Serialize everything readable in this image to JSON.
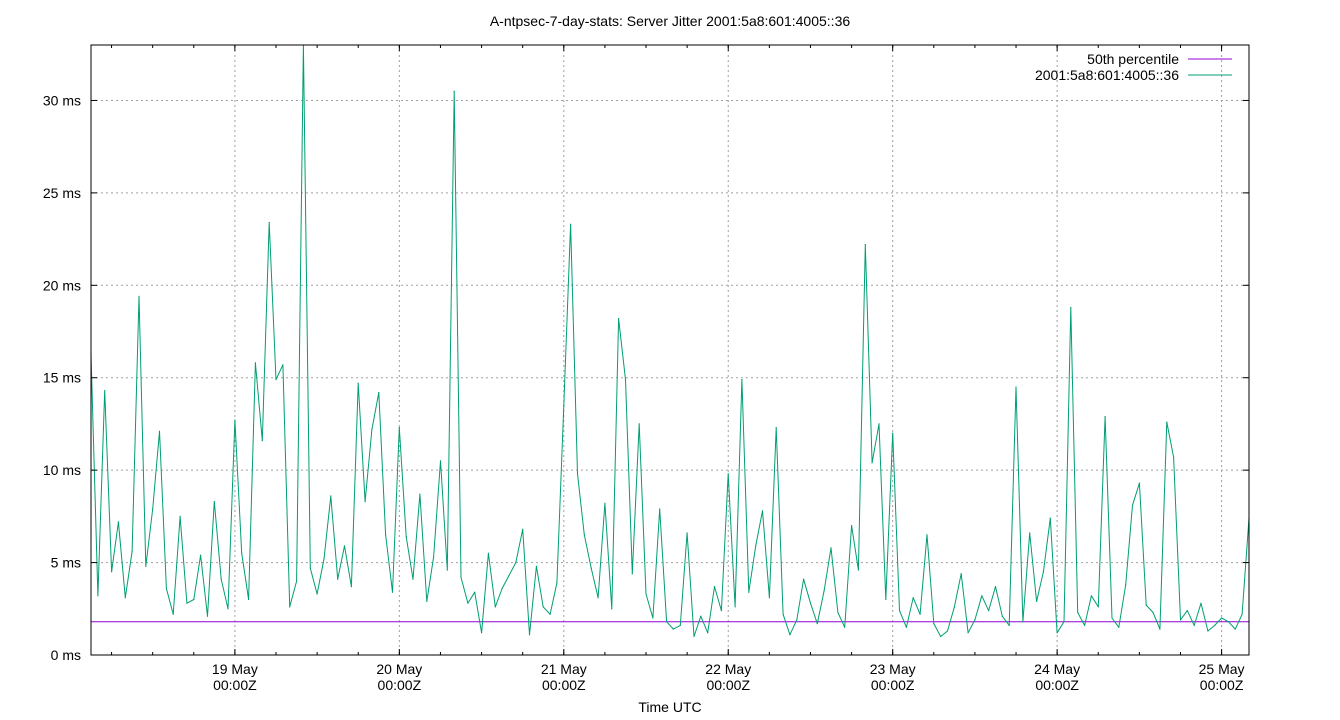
{
  "chart_data": {
    "type": "line",
    "title": "A-ntpsec-7-day-stats: Server Jitter 2001:5a8:601:4005::36",
    "xlabel": "Time UTC",
    "ylabel": "",
    "y_unit": "ms",
    "ylim": [
      0,
      33
    ],
    "xlim": [
      "2023-05-18T03:00:00Z",
      "2023-05-25T04:00:00Z"
    ],
    "y_ticks": [
      {
        "value": 0,
        "label": "0 ms"
      },
      {
        "value": 5,
        "label": "5 ms"
      },
      {
        "value": 10,
        "label": "10 ms"
      },
      {
        "value": 15,
        "label": "15 ms"
      },
      {
        "value": 20,
        "label": "20 ms"
      },
      {
        "value": 25,
        "label": "25 ms"
      },
      {
        "value": 30,
        "label": "30 ms"
      }
    ],
    "x_ticks": [
      {
        "value": "2023-05-19T00:00:00Z",
        "line1": "19 May",
        "line2": "00:00Z"
      },
      {
        "value": "2023-05-20T00:00:00Z",
        "line1": "20 May",
        "line2": "00:00Z"
      },
      {
        "value": "2023-05-21T00:00:00Z",
        "line1": "21 May",
        "line2": "00:00Z"
      },
      {
        "value": "2023-05-22T00:00:00Z",
        "line1": "22 May",
        "line2": "00:00Z"
      },
      {
        "value": "2023-05-23T00:00:00Z",
        "line1": "23 May",
        "line2": "00:00Z"
      },
      {
        "value": "2023-05-24T00:00:00Z",
        "line1": "24 May",
        "line2": "00:00Z"
      },
      {
        "value": "2023-05-25T00:00:00Z",
        "line1": "25 May",
        "line2": "00:00Z"
      }
    ],
    "grid": true,
    "legend_position": "top-right",
    "series": [
      {
        "name": "50th percentile",
        "color": "#9400d3",
        "x": [
          "2023-05-18T03:00:00Z",
          "2023-05-25T04:00:00Z"
        ],
        "values": [
          1.8,
          1.8
        ]
      },
      {
        "name": "2001:5a8:601:4005::36",
        "color": "#009e73",
        "x": [
          "2023-05-18T03:00:00Z",
          "2023-05-18T04:00:00Z",
          "2023-05-18T05:00:00Z",
          "2023-05-18T06:00:00Z",
          "2023-05-18T07:00:00Z",
          "2023-05-18T08:00:00Z",
          "2023-05-18T09:00:00Z",
          "2023-05-18T10:00:00Z",
          "2023-05-18T11:00:00Z",
          "2023-05-18T12:00:00Z",
          "2023-05-18T13:00:00Z",
          "2023-05-18T14:00:00Z",
          "2023-05-18T15:00:00Z",
          "2023-05-18T16:00:00Z",
          "2023-05-18T17:00:00Z",
          "2023-05-18T18:00:00Z",
          "2023-05-18T19:00:00Z",
          "2023-05-18T20:00:00Z",
          "2023-05-18T21:00:00Z",
          "2023-05-18T22:00:00Z",
          "2023-05-18T23:00:00Z",
          "2023-05-19T00:00:00Z",
          "2023-05-19T01:00:00Z",
          "2023-05-19T02:00:00Z",
          "2023-05-19T03:00:00Z",
          "2023-05-19T04:00:00Z",
          "2023-05-19T05:00:00Z",
          "2023-05-19T06:00:00Z",
          "2023-05-19T07:00:00Z",
          "2023-05-19T08:00:00Z",
          "2023-05-19T09:00:00Z",
          "2023-05-19T10:00:00Z",
          "2023-05-19T11:00:00Z",
          "2023-05-19T12:00:00Z",
          "2023-05-19T13:00:00Z",
          "2023-05-19T14:00:00Z",
          "2023-05-19T15:00:00Z",
          "2023-05-19T16:00:00Z",
          "2023-05-19T17:00:00Z",
          "2023-05-19T18:00:00Z",
          "2023-05-19T19:00:00Z",
          "2023-05-19T20:00:00Z",
          "2023-05-19T21:00:00Z",
          "2023-05-19T22:00:00Z",
          "2023-05-19T23:00:00Z",
          "2023-05-20T00:00:00Z",
          "2023-05-20T01:00:00Z",
          "2023-05-20T02:00:00Z",
          "2023-05-20T03:00:00Z",
          "2023-05-20T04:00:00Z",
          "2023-05-20T05:00:00Z",
          "2023-05-20T06:00:00Z",
          "2023-05-20T07:00:00Z",
          "2023-05-20T08:00:00Z",
          "2023-05-20T09:00:00Z",
          "2023-05-20T10:00:00Z",
          "2023-05-20T11:00:00Z",
          "2023-05-20T12:00:00Z",
          "2023-05-20T13:00:00Z",
          "2023-05-20T14:00:00Z",
          "2023-05-20T15:00:00Z",
          "2023-05-20T16:00:00Z",
          "2023-05-20T17:00:00Z",
          "2023-05-20T18:00:00Z",
          "2023-05-20T19:00:00Z",
          "2023-05-20T20:00:00Z",
          "2023-05-20T21:00:00Z",
          "2023-05-20T22:00:00Z",
          "2023-05-20T23:00:00Z",
          "2023-05-21T00:00:00Z",
          "2023-05-21T01:00:00Z",
          "2023-05-21T02:00:00Z",
          "2023-05-21T03:00:00Z",
          "2023-05-21T04:00:00Z",
          "2023-05-21T05:00:00Z",
          "2023-05-21T06:00:00Z",
          "2023-05-21T07:00:00Z",
          "2023-05-21T08:00:00Z",
          "2023-05-21T09:00:00Z",
          "2023-05-21T10:00:00Z",
          "2023-05-21T11:00:00Z",
          "2023-05-21T12:00:00Z",
          "2023-05-21T13:00:00Z",
          "2023-05-21T14:00:00Z",
          "2023-05-21T15:00:00Z",
          "2023-05-21T16:00:00Z",
          "2023-05-21T17:00:00Z",
          "2023-05-21T18:00:00Z",
          "2023-05-21T19:00:00Z",
          "2023-05-21T20:00:00Z",
          "2023-05-21T21:00:00Z",
          "2023-05-21T22:00:00Z",
          "2023-05-21T23:00:00Z",
          "2023-05-22T00:00:00Z",
          "2023-05-22T01:00:00Z",
          "2023-05-22T02:00:00Z",
          "2023-05-22T03:00:00Z",
          "2023-05-22T04:00:00Z",
          "2023-05-22T05:00:00Z",
          "2023-05-22T06:00:00Z",
          "2023-05-22T07:00:00Z",
          "2023-05-22T08:00:00Z",
          "2023-05-22T09:00:00Z",
          "2023-05-22T10:00:00Z",
          "2023-05-22T11:00:00Z",
          "2023-05-22T12:00:00Z",
          "2023-05-22T13:00:00Z",
          "2023-05-22T14:00:00Z",
          "2023-05-22T15:00:00Z",
          "2023-05-22T16:00:00Z",
          "2023-05-22T17:00:00Z",
          "2023-05-22T18:00:00Z",
          "2023-05-22T19:00:00Z",
          "2023-05-22T20:00:00Z",
          "2023-05-22T21:00:00Z",
          "2023-05-22T22:00:00Z",
          "2023-05-22T23:00:00Z",
          "2023-05-23T00:00:00Z",
          "2023-05-23T01:00:00Z",
          "2023-05-23T02:00:00Z",
          "2023-05-23T03:00:00Z",
          "2023-05-23T04:00:00Z",
          "2023-05-23T05:00:00Z",
          "2023-05-23T06:00:00Z",
          "2023-05-23T07:00:00Z",
          "2023-05-23T08:00:00Z",
          "2023-05-23T09:00:00Z",
          "2023-05-23T10:00:00Z",
          "2023-05-23T11:00:00Z",
          "2023-05-23T12:00:00Z",
          "2023-05-23T13:00:00Z",
          "2023-05-23T14:00:00Z",
          "2023-05-23T15:00:00Z",
          "2023-05-23T16:00:00Z",
          "2023-05-23T17:00:00Z",
          "2023-05-23T18:00:00Z",
          "2023-05-23T19:00:00Z",
          "2023-05-23T20:00:00Z",
          "2023-05-23T21:00:00Z",
          "2023-05-23T22:00:00Z",
          "2023-05-23T23:00:00Z",
          "2023-05-24T00:00:00Z",
          "2023-05-24T01:00:00Z",
          "2023-05-24T02:00:00Z",
          "2023-05-24T03:00:00Z",
          "2023-05-24T04:00:00Z",
          "2023-05-24T05:00:00Z",
          "2023-05-24T06:00:00Z",
          "2023-05-24T07:00:00Z",
          "2023-05-24T08:00:00Z",
          "2023-05-24T09:00:00Z",
          "2023-05-24T10:00:00Z",
          "2023-05-24T11:00:00Z",
          "2023-05-24T12:00:00Z",
          "2023-05-24T13:00:00Z",
          "2023-05-24T14:00:00Z",
          "2023-05-24T15:00:00Z",
          "2023-05-24T16:00:00Z",
          "2023-05-24T17:00:00Z",
          "2023-05-24T18:00:00Z",
          "2023-05-24T19:00:00Z",
          "2023-05-24T20:00:00Z",
          "2023-05-24T21:00:00Z",
          "2023-05-24T22:00:00Z",
          "2023-05-24T23:00:00Z",
          "2023-05-25T00:00:00Z",
          "2023-05-25T01:00:00Z",
          "2023-05-25T02:00:00Z",
          "2023-05-25T03:00:00Z",
          "2023-05-25T04:00:00Z"
        ],
        "values": [
          16.3,
          3.2,
          14.3,
          4.5,
          7.2,
          3.1,
          5.6,
          19.4,
          4.8,
          7.9,
          12.1,
          3.6,
          2.2,
          7.5,
          2.8,
          3.0,
          5.4,
          2.1,
          8.3,
          4.1,
          2.5,
          12.7,
          5.5,
          3.0,
          15.8,
          11.6,
          23.4,
          14.9,
          15.7,
          2.6,
          4.0,
          33.0,
          4.7,
          3.3,
          5.2,
          8.6,
          4.1,
          5.9,
          3.7,
          14.7,
          8.3,
          12.2,
          14.2,
          6.5,
          3.4,
          12.3,
          6.4,
          4.1,
          8.7,
          2.9,
          5.3,
          10.5,
          4.6,
          30.5,
          4.2,
          2.8,
          3.4,
          1.2,
          5.5,
          2.6,
          3.6,
          4.3,
          5.0,
          6.8,
          1.1,
          4.8,
          2.6,
          2.2,
          3.9,
          13.5,
          23.3,
          9.8,
          6.5,
          4.7,
          3.1,
          8.2,
          2.5,
          18.2,
          14.9,
          4.4,
          12.5,
          3.3,
          2.0,
          7.9,
          1.8,
          1.4,
          1.6,
          6.6,
          1.0,
          2.1,
          1.2,
          3.7,
          2.4,
          9.8,
          2.6,
          14.9,
          3.4,
          5.9,
          7.8,
          3.1,
          12.3,
          2.2,
          1.1,
          1.9,
          4.1,
          2.8,
          1.7,
          3.5,
          5.8,
          2.3,
          1.5,
          7.0,
          4.6,
          22.2,
          10.4,
          12.5,
          3.0,
          12.0,
          2.4,
          1.5,
          3.1,
          2.2,
          6.5,
          1.7,
          1.0,
          1.3,
          2.6,
          4.4,
          1.2,
          1.9,
          3.2,
          2.4,
          3.7,
          2.1,
          1.6,
          14.5,
          1.8,
          6.6,
          2.9,
          4.5,
          7.4,
          1.2,
          1.8,
          18.8,
          2.3,
          1.6,
          3.2,
          2.6,
          12.9,
          2.0,
          1.5,
          3.8,
          8.1,
          9.3,
          2.7,
          2.3,
          1.4,
          12.6,
          10.7,
          1.9,
          2.4,
          1.6,
          2.8,
          1.3,
          1.6,
          2.0,
          1.8,
          1.4,
          2.2,
          7.4
        ]
      }
    ]
  }
}
